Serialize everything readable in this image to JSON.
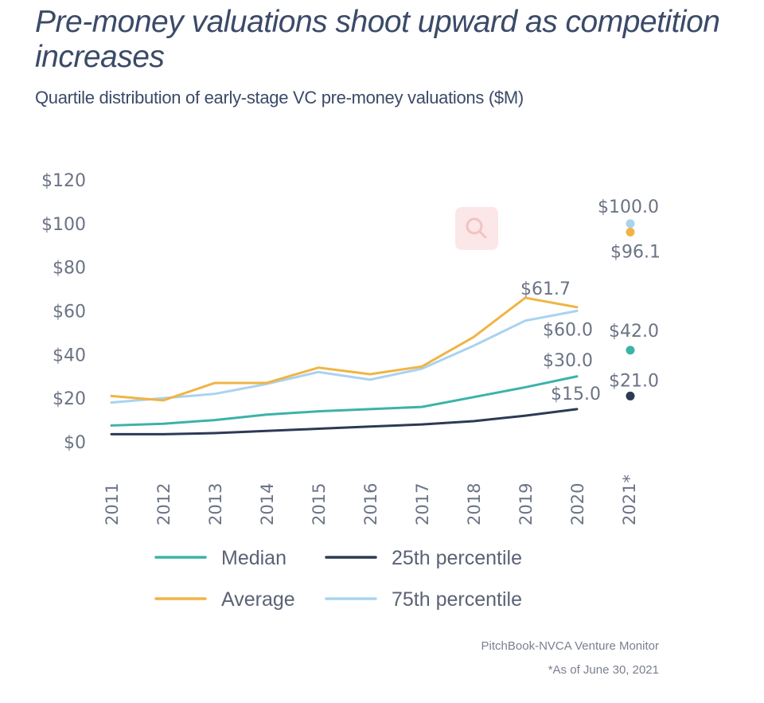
{
  "title": "Pre-money valuations shoot upward as competition increases",
  "subtitle": "Quartile distribution of early-stage VC pre-money valuations ($M)",
  "source": "PitchBook-NVCA Venture Monitor",
  "footnote": "*As of June 30, 2021",
  "colors": {
    "median": "#3bb3a8",
    "p25": "#2d3a55",
    "average": "#f0b446",
    "p75": "#a9d3ef"
  },
  "chart_data": {
    "type": "line",
    "title": "Pre-money valuations shoot upward as competition increases",
    "subtitle": "Quartile distribution of early-stage VC pre-money valuations ($M)",
    "xlabel": "",
    "ylabel": "",
    "ylim": [
      0,
      120
    ],
    "yticks": [
      "$0",
      "$20",
      "$40",
      "$60",
      "$80",
      "$100",
      "$120"
    ],
    "ytick_values": [
      0,
      20,
      40,
      60,
      80,
      100,
      120
    ],
    "categories": [
      "2011",
      "2012",
      "2013",
      "2014",
      "2015",
      "2016",
      "2017",
      "2018",
      "2019",
      "2020",
      "2021*"
    ],
    "series": [
      {
        "name": "Median",
        "key": "median",
        "values": [
          7.5,
          8.3,
          10.0,
          12.5,
          14.0,
          15.0,
          16.0,
          20.5,
          25.0,
          30.0,
          null
        ],
        "point_2021": 42.0
      },
      {
        "name": "25th percentile",
        "key": "p25",
        "values": [
          3.5,
          3.5,
          4.0,
          5.0,
          6.0,
          7.0,
          8.0,
          9.5,
          12.0,
          15.0,
          null
        ],
        "point_2021": 21.0
      },
      {
        "name": "Average",
        "key": "average",
        "values": [
          21.0,
          19.0,
          27.0,
          27.0,
          34.0,
          31.0,
          34.5,
          48.0,
          66.0,
          61.7,
          null
        ],
        "point_2021": 96.1
      },
      {
        "name": "75th percentile",
        "key": "p75",
        "values": [
          18.0,
          20.0,
          22.0,
          26.5,
          32.0,
          28.5,
          33.5,
          44.0,
          55.5,
          60.0,
          null
        ],
        "point_2021": 100.0
      }
    ],
    "data_labels": [
      {
        "text": "$61.7",
        "series": "average",
        "category": "2020"
      },
      {
        "text": "$60.0",
        "series": "p75",
        "category": "2020"
      },
      {
        "text": "$30.0",
        "series": "median",
        "category": "2020"
      },
      {
        "text": "$15.0",
        "series": "p25",
        "category": "2020"
      },
      {
        "text": "$100.0",
        "series": "p75",
        "category": "2021*"
      },
      {
        "text": "$96.1",
        "series": "average",
        "category": "2021*"
      },
      {
        "text": "$42.0",
        "series": "median",
        "category": "2021*"
      },
      {
        "text": "$21.0",
        "series": "p25",
        "category": "2021*"
      }
    ],
    "legend": [
      {
        "label": "Median",
        "key": "median"
      },
      {
        "label": "25th percentile",
        "key": "p25"
      },
      {
        "label": "Average",
        "key": "average"
      },
      {
        "label": "75th percentile",
        "key": "p75"
      }
    ],
    "grid": false,
    "legend_position": "bottom"
  }
}
